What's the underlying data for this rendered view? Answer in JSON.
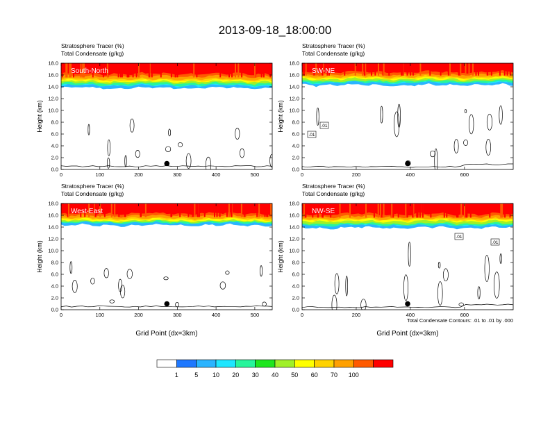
{
  "figure": {
    "title": "2013-09-18_18:00:00",
    "contour_note": "Total Condensate Contours: .01 to .01 by .000"
  },
  "colorbar": {
    "colors": [
      "#ffffff",
      "#1e78ff",
      "#2ab4ff",
      "#1ee6ff",
      "#27f59b",
      "#1ee61e",
      "#a0f028",
      "#ffff00",
      "#ffd200",
      "#ffa000",
      "#ff5a00",
      "#ff0000"
    ],
    "labels": [
      "1",
      "5",
      "10",
      "20",
      "30",
      "40",
      "50",
      "60",
      "70",
      "100"
    ]
  },
  "chart_data": [
    {
      "type": "heatmap",
      "panel": "South-North",
      "title_line1": "Stratosphere Tracer   (%)",
      "title_line2": "Total Condensate   (g/kg)",
      "xlabel": "",
      "ylabel": "Height (km)",
      "xlim": [
        0,
        545
      ],
      "ylim": [
        0,
        18
      ],
      "xticks": [
        "0",
        "100",
        "200",
        "300",
        "400",
        "500"
      ],
      "xtick_values": [
        0,
        100,
        200,
        300,
        400,
        500
      ],
      "yticks": [
        "0.0",
        "2.0",
        "4.0",
        "6.0",
        "8.0",
        "10.0",
        "12.0",
        "14.0",
        "16.0",
        "18.0"
      ],
      "tropopause_km": {
        "red_above": 16.2,
        "orange_above": 15.3,
        "green_above": 14.6,
        "blue_bottom": 13.8
      },
      "marker_point": [
        273,
        1.0
      ],
      "contour_labels": []
    },
    {
      "type": "heatmap",
      "panel": "SW-NE",
      "title_line1": "Stratosphere Tracer   (%)",
      "title_line2": "Total Condensate   (g/kg)",
      "xlabel": "",
      "ylabel": "Height (km)",
      "xlim": [
        0,
        780
      ],
      "ylim": [
        0,
        18
      ],
      "xticks": [
        "0",
        "200",
        "400",
        "600"
      ],
      "xtick_values": [
        0,
        200,
        400,
        600
      ],
      "yticks": [
        "0.0",
        "2.0",
        "4.0",
        "6.0",
        "8.0",
        "10.0",
        "12.0",
        "14.0",
        "16.0",
        "18.0"
      ],
      "tropopause_km": {
        "red_above": 16.5,
        "orange_above": 15.7,
        "green_above": 15.0,
        "blue_bottom": 14.3
      },
      "marker_point": [
        390,
        1.0
      ],
      "contour_labels": [
        ".01",
        ".01"
      ]
    },
    {
      "type": "heatmap",
      "panel": "West-East",
      "title_line1": "Stratosphere Tracer   (%)",
      "title_line2": "Total Condensate   (g/kg)",
      "xlabel": "Grid Point (dx=3km)",
      "ylabel": "Height (km)",
      "xlim": [
        0,
        545
      ],
      "ylim": [
        0,
        18
      ],
      "xticks": [
        "0",
        "100",
        "200",
        "300",
        "400",
        "500"
      ],
      "xtick_values": [
        0,
        100,
        200,
        300,
        400,
        500
      ],
      "yticks": [
        "0.0",
        "2.0",
        "4.0",
        "6.0",
        "8.0",
        "10.0",
        "12.0",
        "14.0",
        "16.0",
        "18.0"
      ],
      "tropopause_km": {
        "red_above": 16.3,
        "orange_above": 15.5,
        "green_above": 14.9,
        "blue_bottom": 14.3
      },
      "marker_point": [
        273,
        1.0
      ],
      "contour_labels": []
    },
    {
      "type": "heatmap",
      "panel": "NW-SE",
      "title_line1": "Stratosphere Tracer   (%)",
      "title_line2": "Total Condensate   (g/kg)",
      "xlabel": "Grid Point (dx=3km)",
      "ylabel": "Height (km)",
      "xlim": [
        0,
        780
      ],
      "ylim": [
        0,
        18
      ],
      "xticks": [
        "0",
        "200",
        "400",
        "600"
      ],
      "xtick_values": [
        0,
        200,
        400,
        600
      ],
      "yticks": [
        "0.0",
        "2.0",
        "4.0",
        "6.0",
        "8.0",
        "10.0",
        "12.0",
        "14.0",
        "16.0",
        "18.0"
      ],
      "tropopause_km": {
        "red_above": 16.2,
        "orange_above": 15.4,
        "green_above": 14.6,
        "blue_bottom": 13.9
      },
      "marker_point": [
        390,
        1.0
      ],
      "contour_labels": [
        ".01",
        ".01"
      ]
    }
  ]
}
